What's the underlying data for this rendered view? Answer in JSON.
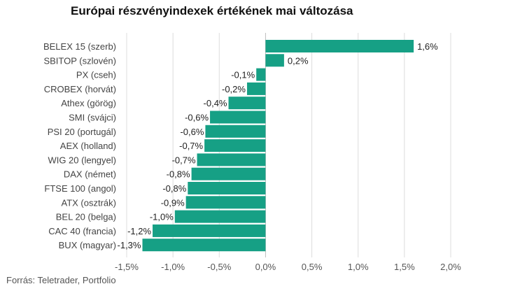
{
  "chart_data": {
    "type": "bar",
    "orientation": "horizontal",
    "title": "Európai részvényindexek értékének mai változása",
    "source": "Forrás: Teletrader, Portfolio",
    "bar_color": "#16a085",
    "grid": true,
    "xlim": [
      -1.5,
      2.0
    ],
    "ticks": [
      {
        "value": -1.5,
        "label": "-1,5%"
      },
      {
        "value": -1.0,
        "label": "-1,0%"
      },
      {
        "value": -0.5,
        "label": "-0,5%"
      },
      {
        "value": 0.0,
        "label": "0,0%"
      },
      {
        "value": 0.5,
        "label": "0,5%"
      },
      {
        "value": 1.0,
        "label": "1,0%"
      },
      {
        "value": 1.5,
        "label": "1,5%"
      },
      {
        "value": 2.0,
        "label": "2,0%"
      }
    ],
    "bars": [
      {
        "category": "BELEX 15 (szerb)",
        "value": 1.6,
        "label": "1,6%"
      },
      {
        "category": "SBITOP (szlovén)",
        "value": 0.2,
        "label": "0,2%"
      },
      {
        "category": "PX (cseh)",
        "value": -0.1,
        "label": "-0,1%"
      },
      {
        "category": "CROBEX (horvát)",
        "value": -0.2,
        "label": "-0,2%"
      },
      {
        "category": "Athex (görög)",
        "value": -0.4,
        "label": "-0,4%"
      },
      {
        "category": "SMI (svájci)",
        "value": -0.6,
        "label": "-0,6%"
      },
      {
        "category": "PSI 20 (portugál)",
        "value": -0.65,
        "label": "-0,6%"
      },
      {
        "category": "AEX (holland)",
        "value": -0.66,
        "label": "-0,7%"
      },
      {
        "category": "WIG 20 (lengyel)",
        "value": -0.74,
        "label": "-0,7%"
      },
      {
        "category": "DAX (német)",
        "value": -0.8,
        "label": "-0,8%"
      },
      {
        "category": "FTSE 100 (angol)",
        "value": -0.84,
        "label": "-0,8%"
      },
      {
        "category": "ATX (osztrák)",
        "value": -0.86,
        "label": "-0,9%"
      },
      {
        "category": "BEL 20 (belga)",
        "value": -0.98,
        "label": "-1,0%"
      },
      {
        "category": "CAC 40 (francia)",
        "value": -1.22,
        "label": "-1,2%"
      },
      {
        "category": "BUX (magyar)",
        "value": -1.33,
        "label": "-1,3%"
      }
    ]
  }
}
